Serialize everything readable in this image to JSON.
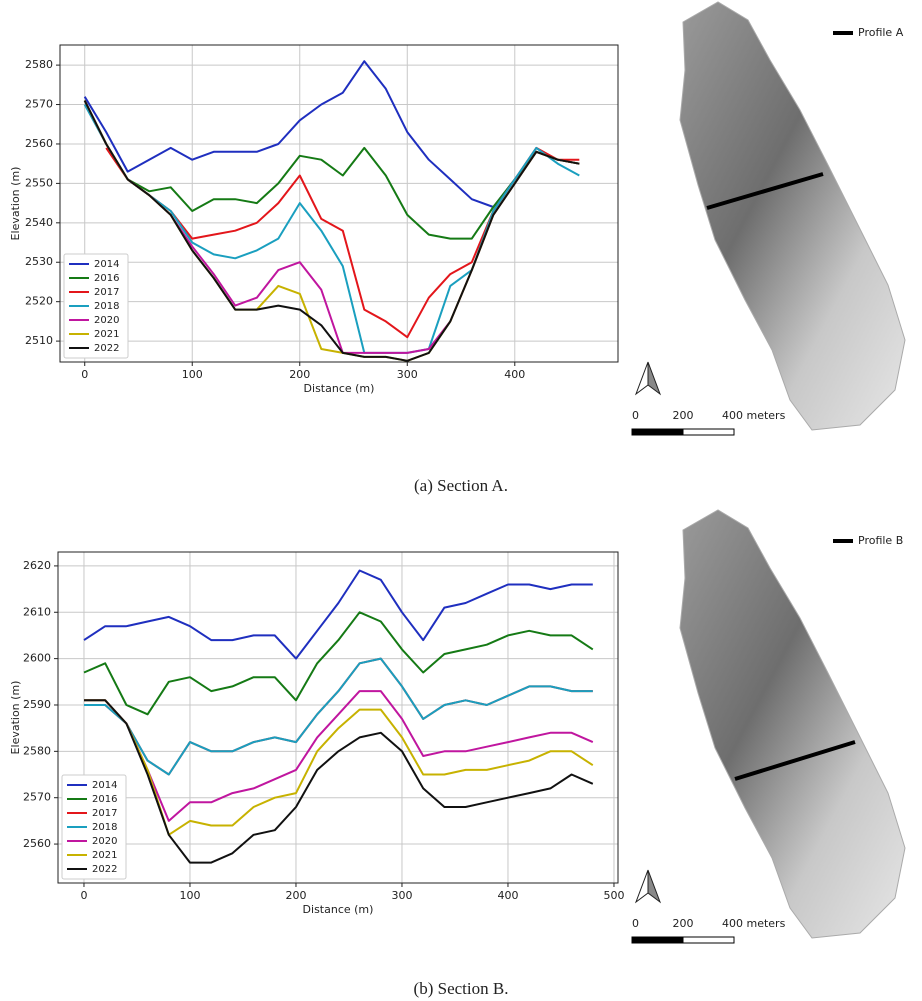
{
  "chart_data": [
    {
      "type": "line",
      "xlabel": "Distance (m)",
      "ylabel": "Elevation (m)",
      "caption": "(a) Section A.",
      "x": [
        0,
        20,
        40,
        60,
        80,
        100,
        120,
        140,
        160,
        180,
        200,
        220,
        240,
        260,
        280,
        300,
        320,
        340,
        360,
        380,
        400,
        420,
        440,
        460
      ],
      "series": [
        {
          "name": "2014",
          "color": "#1f2fbf",
          "values": [
            2572,
            2563,
            2553,
            2556,
            2559,
            2556,
            2558,
            2558,
            2558,
            2560,
            2566,
            2570,
            2573,
            2581,
            2574,
            2563,
            2556,
            2551,
            2546,
            2544,
            2551,
            2558,
            2556,
            2555
          ]
        },
        {
          "name": "2016",
          "color": "#157a15",
          "values": [
            2571,
            2560,
            2551,
            2548,
            2549,
            2543,
            2546,
            2546,
            2545,
            2550,
            2557,
            2556,
            2552,
            2559,
            2552,
            2542,
            2537,
            2536,
            2536,
            2544,
            2551,
            2558,
            2556,
            2555
          ]
        },
        {
          "name": "2017",
          "color": "#e3161b",
          "values": [
            null,
            2559,
            2551,
            2547,
            2543,
            2536,
            2537,
            2538,
            2540,
            2545,
            2552,
            2541,
            2538,
            2518,
            2515,
            2511,
            2521,
            2527,
            2530,
            2543,
            2551,
            2559,
            2556,
            2556
          ]
        },
        {
          "name": "2018",
          "color": "#1a9fbf",
          "values": [
            2570,
            2560,
            2551,
            2547,
            2543,
            2535,
            2532,
            2531,
            2533,
            2536,
            2545,
            2538,
            2529,
            2507,
            2507,
            2507,
            2508,
            2524,
            2528,
            2543,
            2551,
            2559,
            2555,
            2552
          ]
        },
        {
          "name": "2020",
          "color": "#c0169f",
          "values": [
            2571,
            2560,
            2551,
            2547,
            2542,
            2534,
            2527,
            2519,
            2521,
            2528,
            2530,
            2523,
            2507,
            2507,
            2507,
            2507,
            2508,
            2515,
            2528,
            2542,
            2550,
            2558,
            2556,
            2555
          ]
        },
        {
          "name": "2021",
          "color": "#c7b200",
          "values": [
            2571,
            2560,
            2551,
            2547,
            2542,
            2533,
            2526,
            2518,
            2518,
            2524,
            2522,
            2508,
            2507,
            2506,
            2506,
            2505,
            2507,
            2515,
            2528,
            2542,
            2550,
            2558,
            2556,
            2555
          ]
        },
        {
          "name": "2022",
          "color": "#111111",
          "values": [
            2571,
            2560,
            2551,
            2547,
            2542,
            2533,
            2526,
            2518,
            2518,
            2519,
            2518,
            2514,
            2507,
            2506,
            2506,
            2505,
            2507,
            2515,
            2528,
            2542,
            2550,
            2558,
            2556,
            2555
          ]
        }
      ],
      "xlim": [
        -23,
        496
      ],
      "ylim": [
        2504.7,
        2585.1
      ],
      "xticks": [
        0,
        100,
        200,
        300,
        400
      ],
      "yticks": [
        2510,
        2520,
        2530,
        2540,
        2550,
        2560,
        2570,
        2580
      ],
      "grid": true,
      "legend": "lower left",
      "map": {
        "legend": "Profile A",
        "scale_labels": [
          "0",
          "200",
          "400 meters"
        ]
      }
    },
    {
      "type": "line",
      "xlabel": "Distance (m)",
      "ylabel": "Elevation (m)",
      "caption": "(b) Section B.",
      "x": [
        0,
        20,
        40,
        60,
        80,
        100,
        120,
        140,
        160,
        180,
        200,
        220,
        240,
        260,
        280,
        300,
        320,
        340,
        360,
        380,
        400,
        420,
        440,
        460,
        480
      ],
      "series": [
        {
          "name": "2014",
          "color": "#1f2fbf",
          "values": [
            2604,
            2607,
            2607,
            2608,
            2609,
            2607,
            2604,
            2604,
            2605,
            2605,
            2600,
            2606,
            2612,
            2619,
            2617,
            2610,
            2604,
            2611,
            2612,
            2614,
            2616,
            2616,
            2615,
            2616,
            2616
          ]
        },
        {
          "name": "2016",
          "color": "#157a15",
          "values": [
            2597,
            2599,
            2590,
            2588,
            2595,
            2596,
            2593,
            2594,
            2596,
            2596,
            2591,
            2599,
            2604,
            2610,
            2608,
            2602,
            2597,
            2601,
            2602,
            2603,
            2605,
            2606,
            2605,
            2605,
            2602
          ]
        },
        {
          "name": "2017",
          "color": "#e3161b",
          "values": [
            2590,
            2590,
            2586,
            2578,
            2575,
            2582,
            2580,
            2580,
            2582,
            2583,
            2582,
            2588,
            2593,
            2599,
            2600,
            2594,
            2587,
            2590,
            2591,
            2590,
            2592,
            2594,
            2594,
            2593,
            2593
          ]
        },
        {
          "name": "2018",
          "color": "#1a9fbf",
          "values": [
            2590,
            2590,
            2586,
            2578,
            2575,
            2582,
            2580,
            2580,
            2582,
            2583,
            2582,
            2588,
            2593,
            2599,
            2600,
            2594,
            2587,
            2590,
            2591,
            2590,
            2592,
            2594,
            2594,
            2593,
            2593
          ]
        },
        {
          "name": "2020",
          "color": "#c0169f",
          "values": [
            2591,
            2591,
            2586,
            2576,
            2565,
            2569,
            2569,
            2571,
            2572,
            2574,
            2576,
            2583,
            2588,
            2593,
            2593,
            2587,
            2579,
            2580,
            2580,
            2581,
            2582,
            2583,
            2584,
            2584,
            2582
          ]
        },
        {
          "name": "2021",
          "color": "#c7b200",
          "values": [
            2591,
            2591,
            2586,
            2576,
            2562,
            2565,
            2564,
            2564,
            2568,
            2570,
            2571,
            2580,
            2585,
            2589,
            2589,
            2583,
            2575,
            2575,
            2576,
            2576,
            2577,
            2578,
            2580,
            2580,
            2577
          ]
        },
        {
          "name": "2022",
          "color": "#111111",
          "values": [
            2591,
            2591,
            2586,
            2575,
            2562,
            2556,
            2556,
            2558,
            2562,
            2563,
            2568,
            2576,
            2580,
            2583,
            2584,
            2580,
            2572,
            2568,
            2568,
            2569,
            2570,
            2571,
            2572,
            2575,
            2573
          ]
        }
      ],
      "xlim": [
        -24.5,
        503.8
      ],
      "ylim": [
        2551.6,
        2623
      ],
      "xticks": [
        0,
        100,
        200,
        300,
        400,
        500
      ],
      "yticks": [
        2560,
        2570,
        2580,
        2590,
        2600,
        2610,
        2620
      ],
      "grid": true,
      "legend": "lower left",
      "map": {
        "legend": "Profile B",
        "scale_labels": [
          "0",
          "200",
          "400 meters"
        ]
      }
    }
  ]
}
